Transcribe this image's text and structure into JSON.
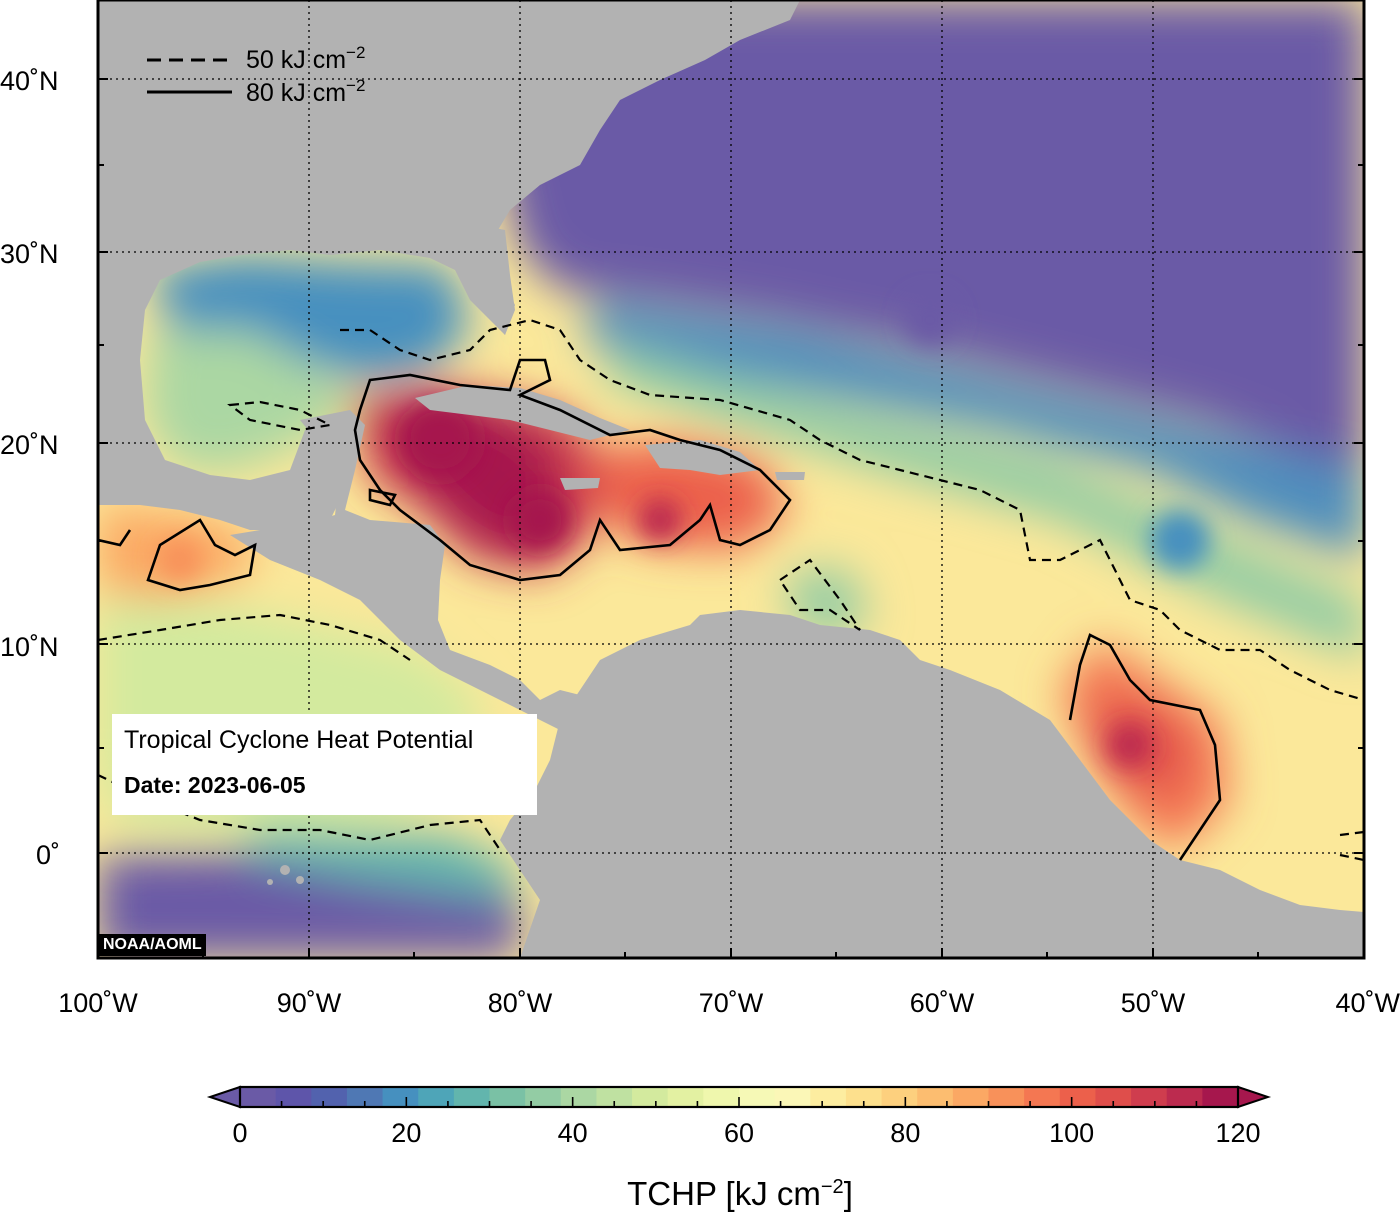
{
  "title_box": {
    "title": "Tropical Cyclone Heat Potential",
    "date_label": "Date:",
    "date": "2023-06-05"
  },
  "credit": "NOAA/AOML",
  "contour_legend": [
    {
      "style": "dashed",
      "label": "50 kJ cm",
      "superscript": "−2"
    },
    {
      "style": "solid",
      "label": "80 kJ cm",
      "superscript": "−2"
    }
  ],
  "axes": {
    "lon_ticks": [
      "100˚W",
      "90˚W",
      "80˚W",
      "70˚W",
      "60˚W",
      "50˚W",
      "40˚W"
    ],
    "lat_ticks": [
      "40˚N",
      "30˚N",
      "20˚N",
      "10˚N",
      "0˚"
    ]
  },
  "colorbar": {
    "ticks": [
      "0",
      "20",
      "40",
      "60",
      "80",
      "100",
      "120"
    ],
    "title": "TCHP [kJ cm",
    "title_sup": "−2",
    "title_end": "]",
    "colors": [
      "#6a5aa6",
      "#5e55aa",
      "#5262ae",
      "#4f78b4",
      "#4690bf",
      "#4ea5b8",
      "#62b5ad",
      "#7ac1a5",
      "#93cca4",
      "#abd7a3",
      "#bfe1a1",
      "#d3ea9e",
      "#e3f1a2",
      "#eff7ad",
      "#f6f9b6",
      "#fbf7b7",
      "#fdeda0",
      "#fde08d",
      "#fdd07e",
      "#fcbd70",
      "#fba864",
      "#f8915a",
      "#f47752",
      "#ec604b",
      "#df4e4b",
      "#cf3d4e",
      "#bc2b4f",
      "#a6174d"
    ]
  },
  "colors": {
    "land": "#b2b2b2",
    "ocean_cool": "#6a5aa6",
    "ocean_warm": "#a6174d"
  }
}
